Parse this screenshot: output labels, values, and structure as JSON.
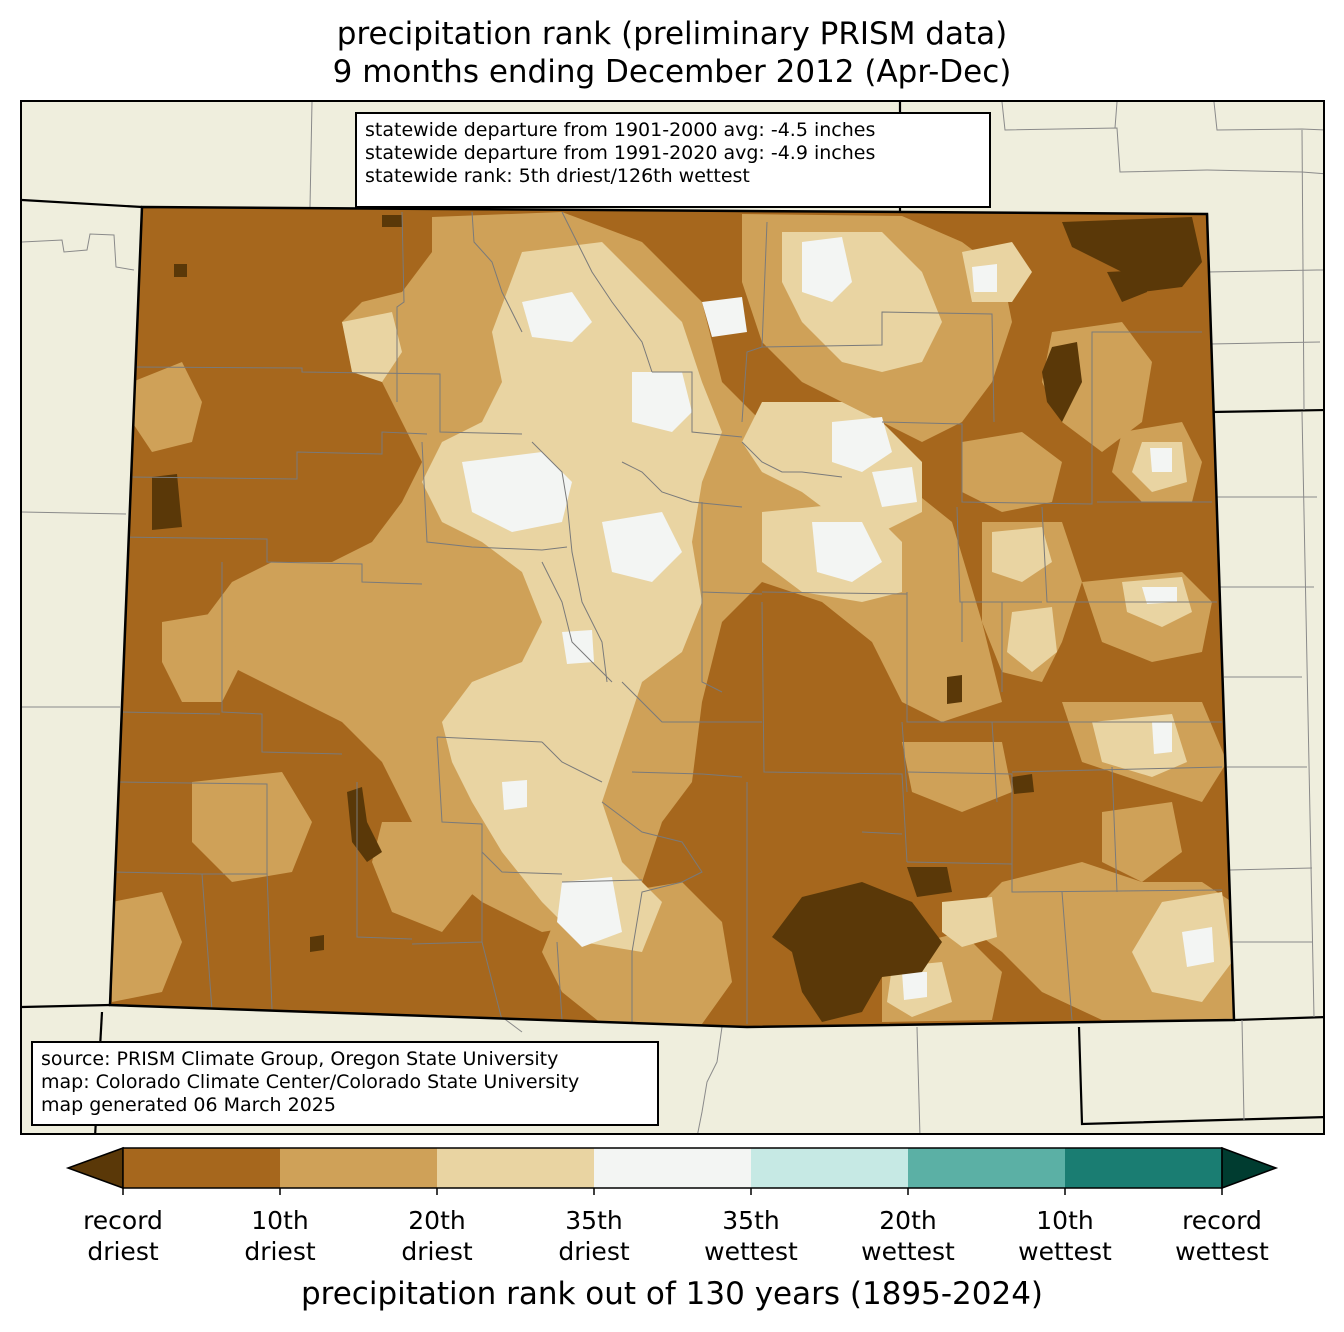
{
  "title": {
    "line1": "precipitation rank (preliminary PRISM data)",
    "line2": "9 months ending December 2012 (Apr-Dec)"
  },
  "stats_box": {
    "line1": "statewide departure from 1901-2000 avg: -4.5 inches",
    "line2": "statewide departure from 1991-2020 avg: -4.9 inches",
    "line3": "statewide rank: 5th driest/126th wettest"
  },
  "source_box": {
    "line1": "source: PRISM Climate Group, Oregon State University",
    "line2": "map: Colorado Climate Center/Colorado State University",
    "line3": "map generated 06 March 2025"
  },
  "colorbar": {
    "xlabel": "precipitation rank out of 130 years (1895-2024)",
    "classes": [
      {
        "label": "record driest (below)",
        "color": "#5a3808"
      },
      {
        "label": "record to 10th driest",
        "color": "#a6671d"
      },
      {
        "label": "10th to 20th driest",
        "color": "#cfa158"
      },
      {
        "label": "20th to 35th driest",
        "color": "#e9d4a2"
      },
      {
        "label": "35th driest to 35th wettest",
        "color": "#f3f5f3"
      },
      {
        "label": "35th to 20th wettest",
        "color": "#c6e9e4"
      },
      {
        "label": "20th to 10th wettest",
        "color": "#5bb0a5"
      },
      {
        "label": "10th to record wettest",
        "color": "#1a7d72"
      },
      {
        "label": "record wettest (above)",
        "color": "#003c30"
      }
    ],
    "ticks": [
      {
        "l1": "record",
        "l2": "driest"
      },
      {
        "l1": "10th",
        "l2": "driest"
      },
      {
        "l1": "20th",
        "l2": "driest"
      },
      {
        "l1": "35th",
        "l2": "driest"
      },
      {
        "l1": "35th",
        "l2": "wettest"
      },
      {
        "l1": "20th",
        "l2": "wettest"
      },
      {
        "l1": "10th",
        "l2": "wettest"
      },
      {
        "l1": "record",
        "l2": "wettest"
      }
    ]
  },
  "map": {
    "background_color": "#efeedd",
    "state_base_color": "#a6671d",
    "county_line_color": "#7a7a7a",
    "state_border_color": "#000000"
  }
}
